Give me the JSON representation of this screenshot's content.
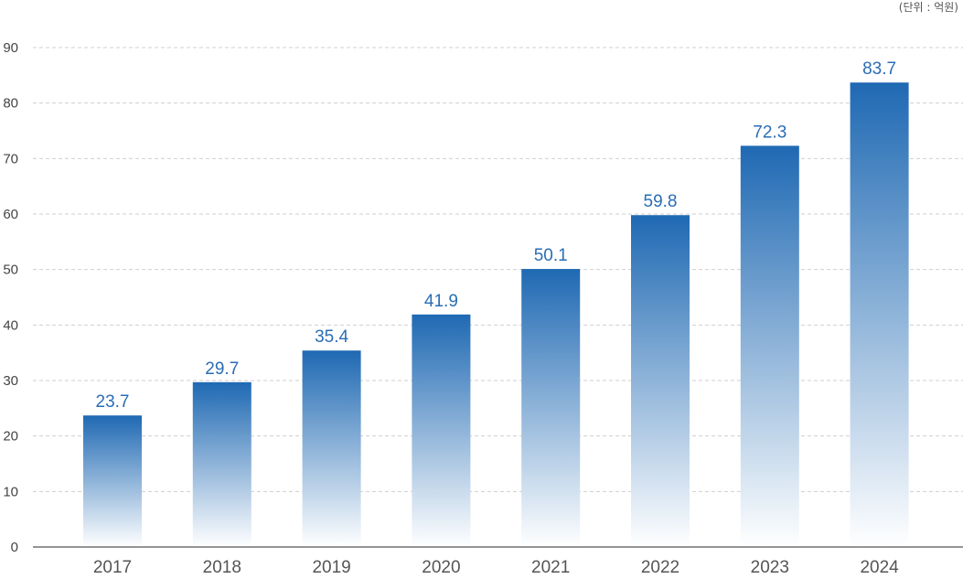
{
  "unit_note": "(단위 : 억원)",
  "colors": {
    "bar_top": "#1f69b3",
    "bar_bottom": "#ffffff",
    "data_label": "#2a6db5"
  },
  "chart_data": {
    "type": "bar",
    "categories": [
      "2017",
      "2018",
      "2019",
      "2020",
      "2021",
      "2022",
      "2023",
      "2024"
    ],
    "values": [
      23.7,
      29.7,
      35.4,
      41.9,
      50.1,
      59.8,
      72.3,
      83.7
    ],
    "data_labels": [
      "23.7",
      "29.7",
      "35.4",
      "41.9",
      "50.1",
      "59.8",
      "72.3",
      "83.7"
    ],
    "yticks": [
      "0",
      "10",
      "20",
      "30",
      "40",
      "50",
      "60",
      "70",
      "80",
      "90"
    ],
    "ylim": [
      0,
      90
    ],
    "grid": true,
    "title": "",
    "xlabel": "",
    "ylabel": ""
  }
}
